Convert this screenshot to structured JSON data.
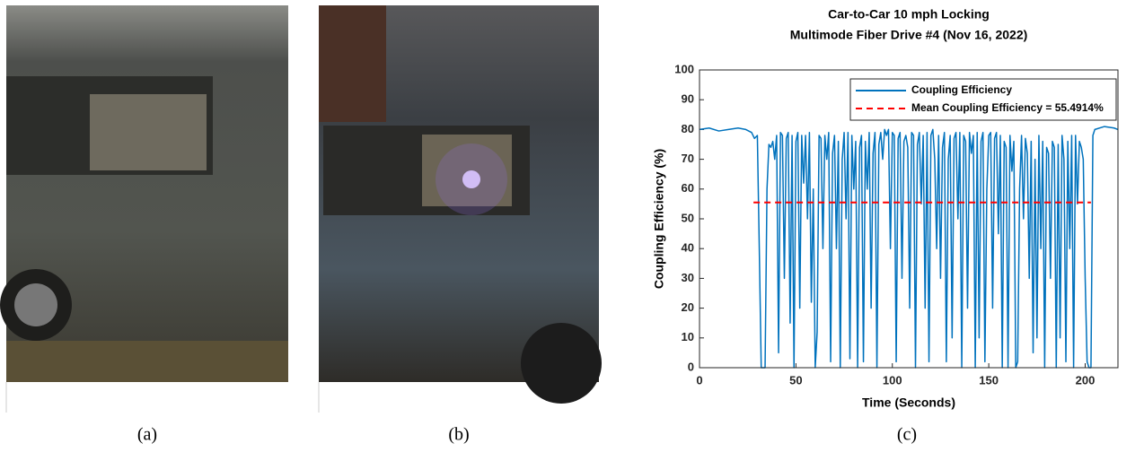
{
  "captions": [
    "(a)",
    "(b)",
    "(c)"
  ],
  "chart_data": {
    "type": "line",
    "title": "Car-to-Car 10 mph Locking",
    "subtitle": "Multimode Fiber Drive #4 (Nov 16, 2022)",
    "x_label": "Time (Seconds)",
    "y_label": "Coupling Efficiency (%)",
    "xlim": [
      0,
      217
    ],
    "xticks": [
      0,
      50,
      100,
      150,
      200
    ],
    "ylim": [
      0,
      100
    ],
    "yticks": [
      0,
      10,
      20,
      30,
      40,
      50,
      60,
      70,
      80,
      90,
      100
    ],
    "grid": false,
    "legend": "upper right",
    "series": [
      {
        "name": "Coupling Efficiency",
        "color": "#0072bd",
        "dash": false,
        "x": [
          0,
          5,
          10,
          15,
          20,
          24,
          27,
          28.5,
          30,
          31,
          32,
          34,
          35,
          36,
          37,
          38,
          39,
          40,
          41,
          42,
          43,
          44,
          45,
          46,
          47,
          48,
          49,
          50,
          51,
          52,
          53,
          54,
          55,
          56,
          57,
          58,
          59,
          60,
          61,
          62,
          63,
          64,
          65,
          66,
          67,
          68,
          69,
          70,
          71,
          72,
          73,
          74,
          75,
          76,
          77,
          78,
          79,
          80,
          81,
          82,
          83,
          84,
          85,
          86,
          87,
          88,
          89,
          90,
          91,
          92,
          93,
          94,
          95,
          96,
          97,
          98,
          99,
          100,
          101,
          102,
          103,
          104,
          105,
          106,
          107,
          108,
          109,
          110,
          111,
          112,
          113,
          114,
          115,
          116,
          117,
          118,
          119,
          120,
          121,
          122,
          123,
          124,
          125,
          126,
          127,
          128,
          129,
          130,
          131,
          132,
          133,
          134,
          135,
          136,
          137,
          138,
          139,
          140,
          141,
          142,
          143,
          144,
          145,
          146,
          147,
          148,
          149,
          150,
          151,
          152,
          153,
          154,
          155,
          156,
          157,
          158,
          159,
          160,
          161,
          162,
          163,
          164,
          165,
          166,
          167,
          168,
          169,
          170,
          171,
          172,
          173,
          174,
          175,
          176,
          177,
          178,
          179,
          180,
          181,
          182,
          183,
          184,
          185,
          186,
          187,
          188,
          189,
          190,
          191,
          192,
          193,
          194,
          195,
          196,
          197,
          198,
          199,
          200,
          201,
          202,
          203,
          204,
          205,
          210,
          215,
          217
        ],
        "values": [
          80,
          80.5,
          79.5,
          80,
          80.5,
          80,
          79,
          77,
          78,
          40,
          0,
          0,
          60,
          75,
          74,
          76,
          70,
          78,
          5,
          79,
          78,
          30,
          77,
          79,
          15,
          78,
          0,
          76,
          79,
          20,
          78,
          62,
          78,
          50,
          79,
          22,
          60,
          0,
          12,
          78,
          77,
          40,
          78,
          70,
          79,
          2,
          72,
          78,
          40,
          76,
          0,
          70,
          79,
          50,
          79,
          3,
          78,
          60,
          76,
          0,
          74,
          78,
          2,
          76,
          60,
          79,
          20,
          72,
          79,
          0,
          75,
          79,
          70,
          80,
          78,
          80,
          40,
          79,
          78,
          2,
          77,
          79,
          30,
          76,
          78,
          74,
          20,
          79,
          78,
          0,
          75,
          79,
          55,
          78,
          20,
          79,
          2,
          78,
          80,
          70,
          40,
          78,
          30,
          74,
          79,
          2,
          70,
          78,
          10,
          77,
          79,
          50,
          79,
          0,
          78,
          76,
          20,
          79,
          72,
          78,
          0,
          79,
          10,
          76,
          79,
          2,
          60,
          78,
          79,
          20,
          77,
          79,
          45,
          78,
          0,
          76,
          74,
          0,
          78,
          66,
          76,
          0,
          2,
          60,
          78,
          50,
          77,
          72,
          30,
          76,
          5,
          70,
          10,
          78,
          40,
          76,
          0,
          74,
          72,
          30,
          76,
          74,
          0,
          75,
          10,
          78,
          70,
          2,
          76,
          40,
          78,
          0,
          78,
          55,
          76,
          74,
          70,
          30,
          2,
          0,
          0,
          78,
          80,
          81,
          80.5,
          80
        ]
      },
      {
        "name": "Mean Coupling Efficiency = 55.4914%",
        "color": "#ff0000",
        "dash": true,
        "x": [
          28,
          203
        ],
        "values": [
          55.4914,
          55.4914
        ]
      }
    ]
  }
}
